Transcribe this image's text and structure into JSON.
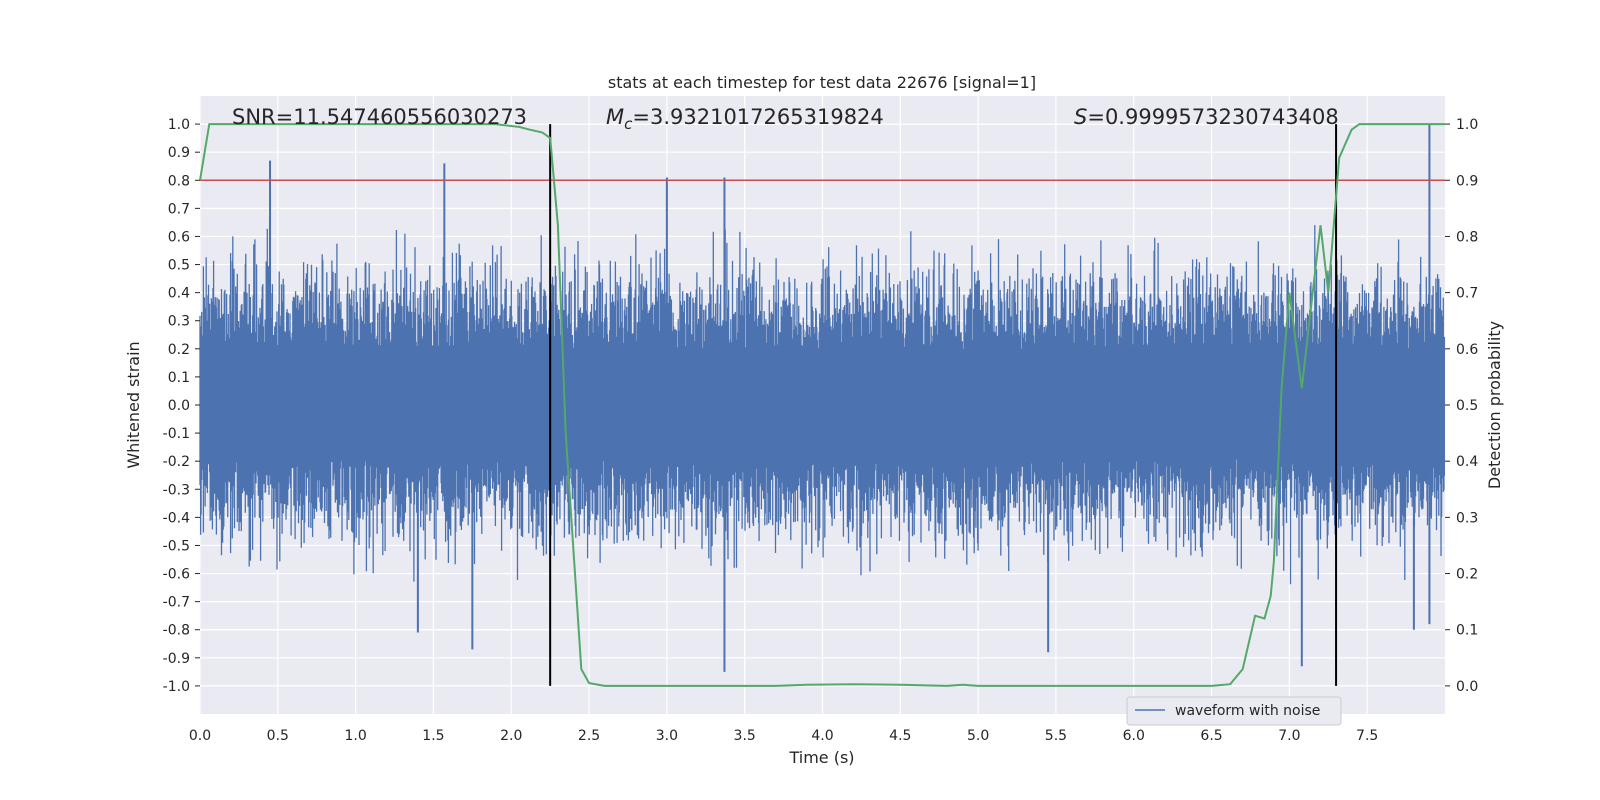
{
  "chart_data": {
    "type": "line",
    "title": "stats at each timestep for test data 22676 [signal=1]",
    "xlabel": "Time (s)",
    "ylabel": "Whitened strain",
    "y2label": "Detection probability",
    "xlim": [
      0.0,
      8.0
    ],
    "ylim": [
      -1.1,
      1.1
    ],
    "y2lim": [
      -0.05,
      1.05
    ],
    "x_ticks": [
      "0.0",
      "0.5",
      "1.0",
      "1.5",
      "2.0",
      "2.5",
      "3.0",
      "3.5",
      "4.0",
      "4.5",
      "5.0",
      "5.5",
      "6.0",
      "6.5",
      "7.0",
      "7.5"
    ],
    "y_ticks": [
      "1.0",
      "0.9",
      "0.8",
      "0.7",
      "0.6",
      "0.5",
      "0.4",
      "0.3",
      "0.2",
      "0.1",
      "0.0",
      "-0.1",
      "-0.2",
      "-0.3",
      "-0.4",
      "-0.5",
      "-0.6",
      "-0.7",
      "-0.8",
      "-0.9",
      "-1.0"
    ],
    "y2_ticks": [
      "1.0",
      "0.9",
      "0.8",
      "0.7",
      "0.6",
      "0.5",
      "0.4",
      "0.3",
      "0.2",
      "0.1",
      "0.0"
    ],
    "grid": true,
    "legend": {
      "position": "lower-right",
      "entries": [
        "waveform with noise"
      ]
    },
    "annotations": {
      "snr": "SNR=11.547460556030273",
      "mc_symbol": "M",
      "mc_sub": "c",
      "mc_value": "=3.9321017265319824",
      "s_symbol": "S",
      "s_value": "=0.9999573230743408"
    },
    "threshold_y": 0.8,
    "vlines_x": [
      2.25,
      7.3
    ],
    "vlines_range": [
      -1.0,
      1.0
    ],
    "series": [
      {
        "name": "waveform with noise",
        "axis": "left",
        "typical_amplitude": 0.35,
        "peaks": [
          [
            0.45,
            0.87
          ],
          [
            1.57,
            0.86
          ],
          [
            3.0,
            0.81
          ],
          [
            3.37,
            0.81
          ],
          [
            7.9,
            1.0
          ],
          [
            1.4,
            -0.81
          ],
          [
            1.75,
            -0.87
          ],
          [
            3.37,
            -0.95
          ],
          [
            5.45,
            -0.88
          ],
          [
            7.08,
            -0.93
          ],
          [
            7.8,
            -0.8
          ],
          [
            7.9,
            -0.78
          ]
        ]
      },
      {
        "name": "detection probability",
        "axis": "right",
        "x": [
          0.0,
          0.06,
          0.2,
          0.5,
          1.0,
          1.5,
          1.9,
          2.05,
          2.12,
          2.2,
          2.25,
          2.3,
          2.35,
          2.45,
          2.5,
          2.6,
          3.0,
          3.4,
          3.5,
          3.7,
          3.9,
          4.2,
          4.5,
          4.8,
          4.9,
          5.0,
          5.5,
          6.0,
          6.5,
          6.62,
          6.7,
          6.78,
          6.84,
          6.88,
          6.9,
          6.95,
          7.0,
          7.08,
          7.15,
          7.2,
          7.25,
          7.32,
          7.4,
          7.45,
          7.6,
          8.0
        ],
        "values": [
          0.9,
          1.0,
          1.0,
          1.0,
          1.0,
          1.0,
          1.0,
          0.995,
          0.99,
          0.985,
          0.975,
          0.82,
          0.45,
          0.03,
          0.005,
          0.0,
          0.0,
          0.0,
          0.0,
          0.0,
          0.002,
          0.003,
          0.002,
          0.0,
          0.002,
          0.0,
          0.0,
          0.0,
          0.0,
          0.003,
          0.03,
          0.125,
          0.12,
          0.16,
          0.22,
          0.53,
          0.7,
          0.53,
          0.7,
          0.82,
          0.7,
          0.94,
          0.99,
          1.0,
          1.0,
          1.0
        ]
      }
    ]
  }
}
